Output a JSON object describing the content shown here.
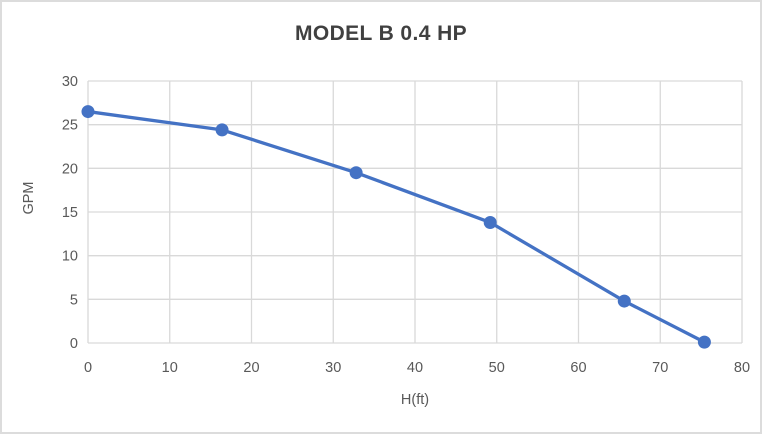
{
  "chart_data": {
    "type": "line",
    "title": "MODEL B 0.4 HP",
    "xlabel": "H(ft)",
    "ylabel": "GPM",
    "xlim": [
      0,
      80
    ],
    "ylim": [
      0,
      30
    ],
    "xticks": [
      0,
      10,
      20,
      30,
      40,
      50,
      60,
      70,
      80
    ],
    "yticks": [
      0,
      5,
      10,
      15,
      20,
      25,
      30
    ],
    "grid": true,
    "legend": false,
    "series": [
      {
        "x": [
          0,
          16.4,
          32.8,
          49.2,
          65.6,
          75.4
        ],
        "y": [
          26.5,
          24.4,
          19.5,
          13.8,
          4.8,
          0.1
        ],
        "marker": "circle"
      }
    ]
  },
  "colors": {
    "line": "#4472C4",
    "marker": "#4472C4",
    "gridline": "#D9D9D9",
    "axis_line": "#D9D9D9",
    "tick_text": "#595959",
    "axis_title_text": "#595959",
    "title_text": "#404040",
    "frame_border": "#DCDCDC",
    "background": "#FFFFFF"
  }
}
